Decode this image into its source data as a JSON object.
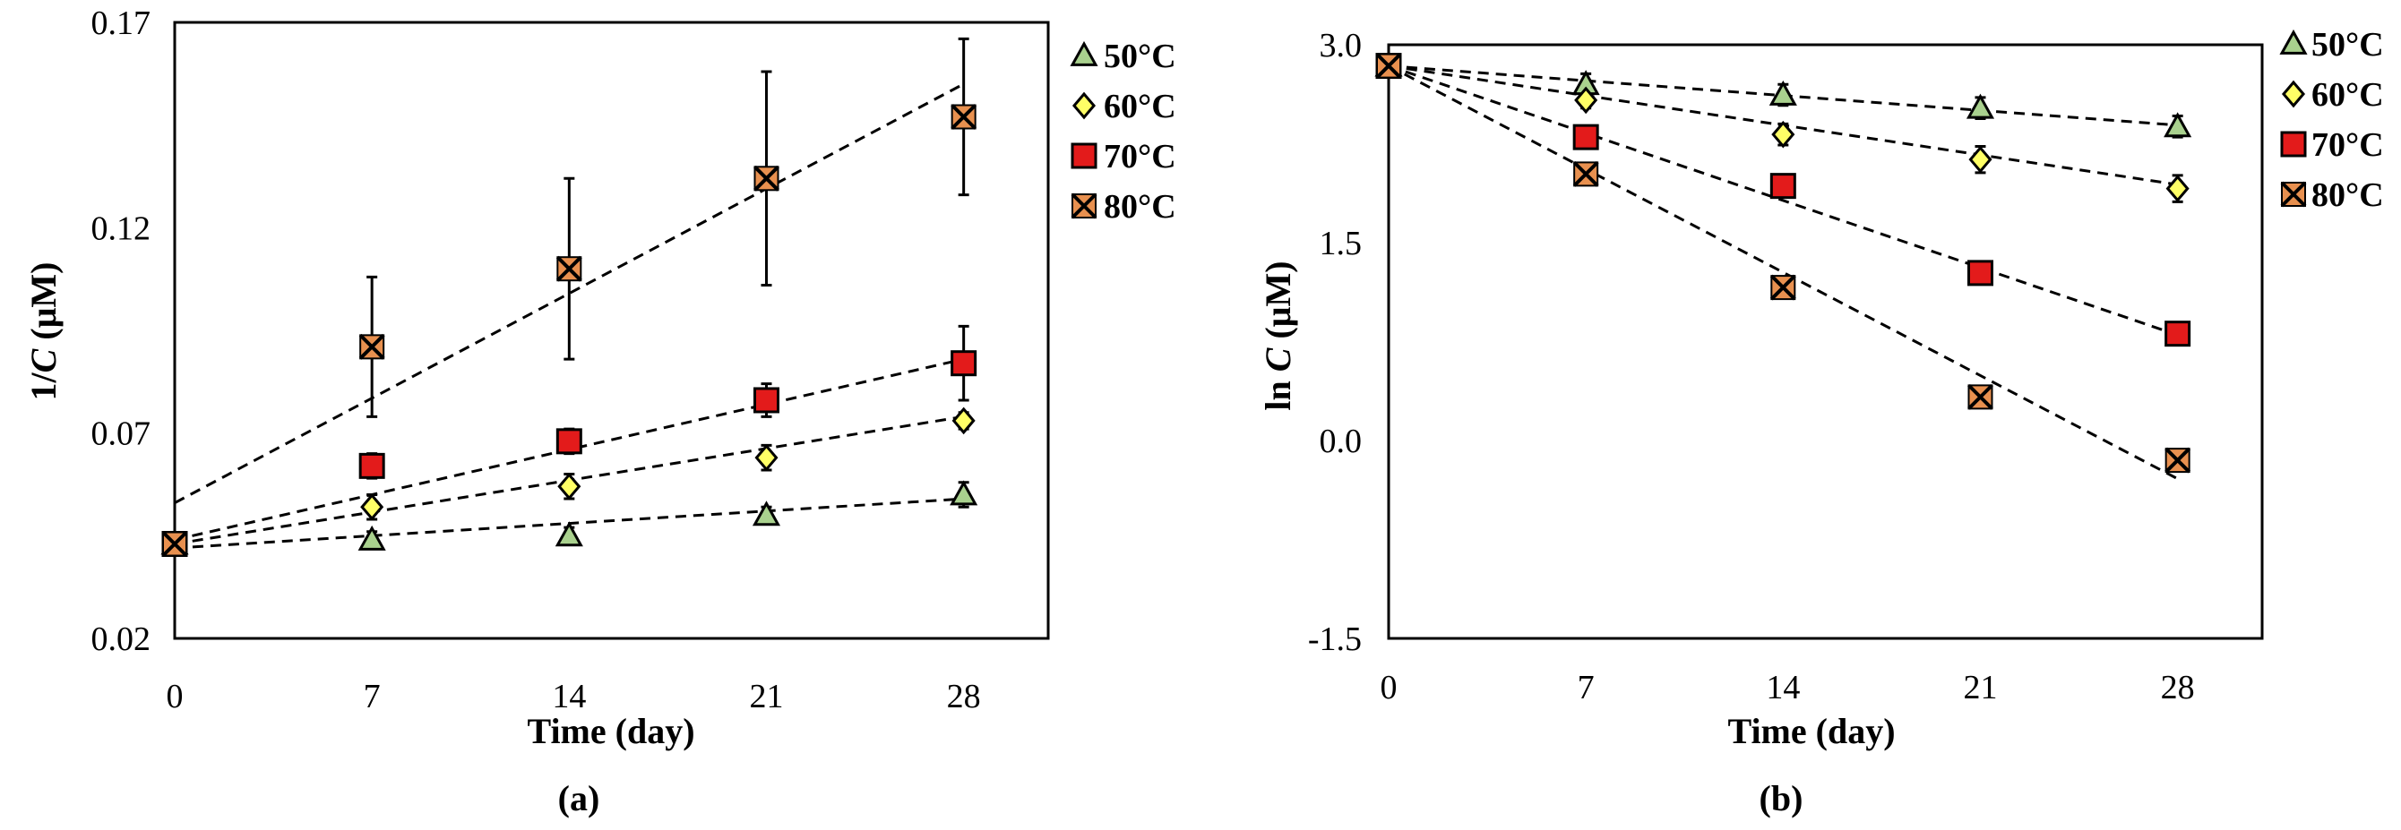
{
  "chart_data": [
    {
      "type": "scatter",
      "caption": "(a)",
      "xlabel": "Time (day)",
      "ylabel_plain": "1/",
      "ylabel_italic": "C",
      "ylabel_unit": " (μM)",
      "xlim": [
        0,
        31
      ],
      "ylim": [
        0.02,
        0.17
      ],
      "xticks": [
        0,
        7,
        14,
        21,
        28
      ],
      "xtick_labels": [
        "0",
        "7",
        "14",
        "21",
        "28"
      ],
      "yticks": [
        0.02,
        0.07,
        0.12,
        0.17
      ],
      "ytick_labels": [
        "0.02",
        "0.07",
        "0.12",
        "0.17"
      ],
      "x": [
        0,
        7,
        14,
        21,
        28
      ],
      "legend_position": "right",
      "series": [
        {
          "name": "50°C",
          "marker": "triangle",
          "color": "#a9d18e",
          "values": [
            0.043,
            0.044,
            0.045,
            0.05,
            0.055
          ],
          "errors": [
            0.0,
            0.002,
            0.002,
            0.002,
            0.003
          ],
          "fit": [
            0.042,
            0.054
          ]
        },
        {
          "name": "60°C",
          "marker": "diamond",
          "color": "#ffff66",
          "values": [
            0.043,
            0.052,
            0.057,
            0.064,
            0.073
          ],
          "errors": [
            0.0,
            0.003,
            0.003,
            0.003,
            0.002
          ],
          "fit": [
            0.043,
            0.074
          ]
        },
        {
          "name": "70°C",
          "marker": "square",
          "color": "#e31b1b",
          "values": [
            0.043,
            0.062,
            0.068,
            0.078,
            0.087
          ],
          "errors": [
            0.0,
            0.003,
            0.003,
            0.004,
            0.009
          ],
          "fit": [
            0.044,
            0.088
          ]
        },
        {
          "name": "80°C",
          "marker": "xsquare",
          "color": "#e8904f",
          "values": [
            0.043,
            0.091,
            0.11,
            0.132,
            0.147
          ],
          "errors": [
            0.0,
            0.017,
            0.022,
            0.026,
            0.019
          ],
          "fit": [
            0.053,
            0.155
          ]
        }
      ]
    },
    {
      "type": "scatter",
      "caption": "(b)",
      "xlabel": "Time (day)",
      "ylabel_plain": "ln ",
      "ylabel_italic": "C",
      "ylabel_unit": " (μM)",
      "xlim": [
        0,
        31
      ],
      "ylim": [
        -1.5,
        3.0
      ],
      "xticks": [
        0,
        7,
        14,
        21,
        28
      ],
      "xtick_labels": [
        "0",
        "7",
        "14",
        "21",
        "28"
      ],
      "yticks": [
        -1.5,
        0.0,
        1.5,
        3.0
      ],
      "ytick_labels": [
        "-1.5",
        "0.0",
        "1.5",
        "3.0"
      ],
      "x": [
        0,
        7,
        14,
        21,
        28
      ],
      "legend_position": "right",
      "series": [
        {
          "name": "50°C",
          "marker": "triangle",
          "color": "#a9d18e",
          "values": [
            2.84,
            2.7,
            2.62,
            2.52,
            2.38
          ],
          "errors": [
            0.0,
            0.08,
            0.08,
            0.08,
            0.08
          ],
          "fit": [
            2.84,
            2.39
          ]
        },
        {
          "name": "60°C",
          "marker": "diamond",
          "color": "#ffff66",
          "values": [
            2.84,
            2.58,
            2.32,
            2.13,
            1.91
          ],
          "errors": [
            0.0,
            0.06,
            0.08,
            0.1,
            0.1
          ],
          "fit": [
            2.84,
            1.94
          ]
        },
        {
          "name": "70°C",
          "marker": "square",
          "color": "#e31b1b",
          "values": [
            2.84,
            2.3,
            1.93,
            1.27,
            0.81
          ],
          "errors": [
            0.0,
            0.06,
            0.06,
            0.07,
            0.05
          ],
          "fit": [
            2.84,
            0.8
          ]
        },
        {
          "name": "80°C",
          "marker": "xsquare",
          "color": "#e8904f",
          "values": [
            2.84,
            2.02,
            1.16,
            0.33,
            -0.15
          ],
          "errors": [
            0.0,
            0.05,
            0.05,
            0.05,
            0.08
          ],
          "fit": [
            2.84,
            -0.29
          ]
        }
      ]
    }
  ]
}
